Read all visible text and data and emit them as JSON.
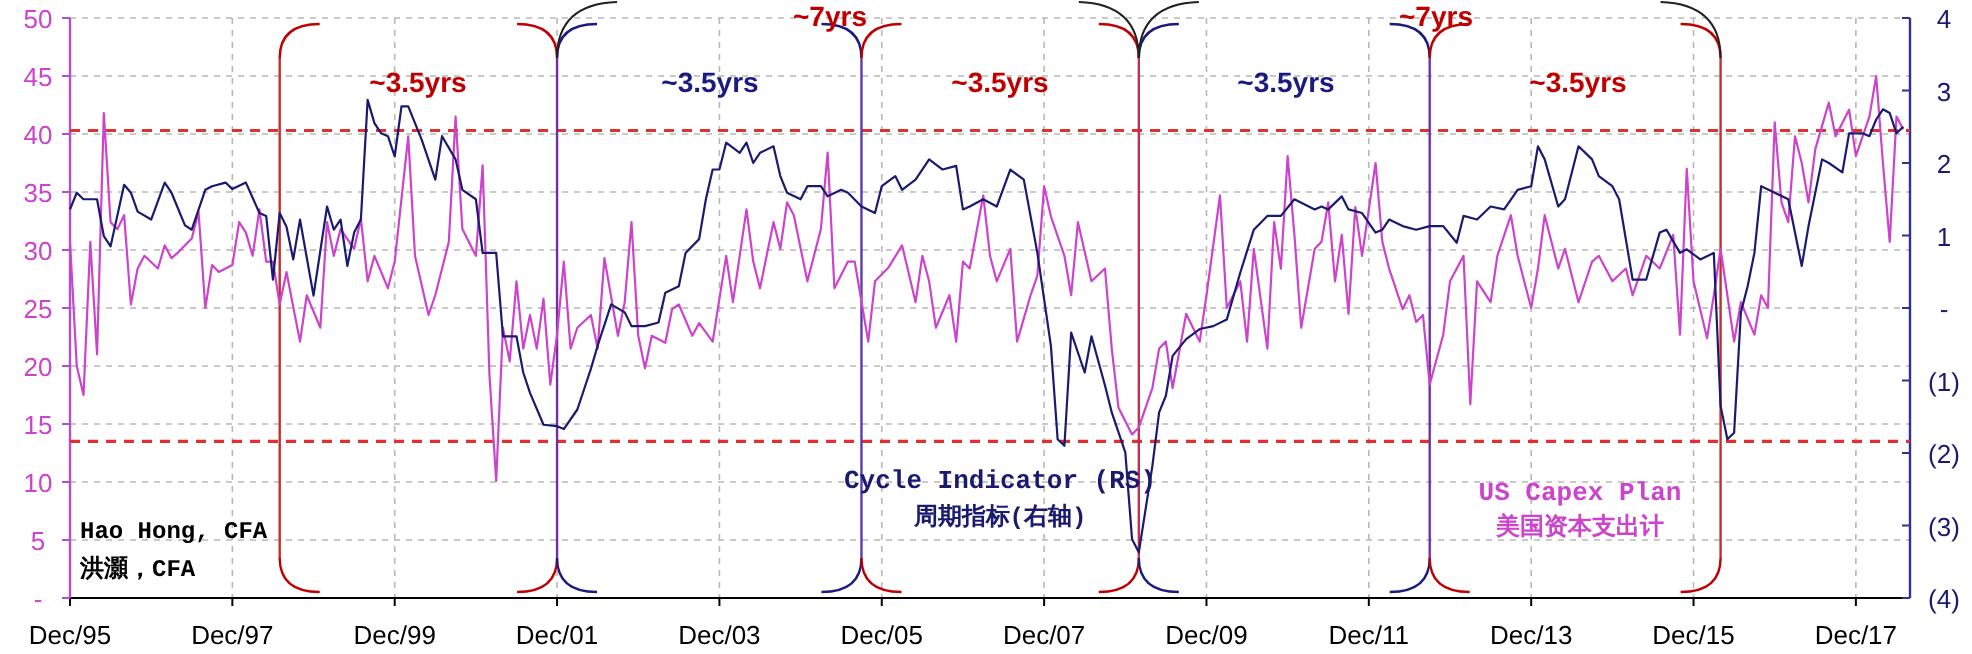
{
  "chart_data": {
    "type": "line",
    "grid": true,
    "xlim": [
      "1995-12",
      "2018-08"
    ],
    "xticks": [
      {
        "value": "1995-12",
        "label": "Dec/95"
      },
      {
        "value": "1997-12",
        "label": "Dec/97"
      },
      {
        "value": "1999-12",
        "label": "Dec/99"
      },
      {
        "value": "2001-12",
        "label": "Dec/01"
      },
      {
        "value": "2003-12",
        "label": "Dec/03"
      },
      {
        "value": "2005-12",
        "label": "Dec/05"
      },
      {
        "value": "2007-12",
        "label": "Dec/07"
      },
      {
        "value": "2009-12",
        "label": "Dec/09"
      },
      {
        "value": "2011-12",
        "label": "Dec/11"
      },
      {
        "value": "2013-12",
        "label": "Dec/13"
      },
      {
        "value": "2015-12",
        "label": "Dec/15"
      },
      {
        "value": "2017-12",
        "label": "Dec/17"
      }
    ],
    "ylim": [
      0,
      50
    ],
    "yticks": [
      {
        "value": 0,
        "label": "-"
      },
      5,
      10,
      15,
      20,
      25,
      30,
      35,
      40,
      45,
      50
    ],
    "y2lim": [
      -4,
      4
    ],
    "y2ticks": [
      {
        "value": -4,
        "label": "(4)"
      },
      {
        "value": -3,
        "label": "(3)"
      },
      {
        "value": -2,
        "label": "(2)"
      },
      {
        "value": -1,
        "label": "(1)"
      },
      {
        "value": 0,
        "label": "-"
      },
      1,
      2,
      3,
      4
    ],
    "ref_lines": [
      {
        "axis": "y",
        "value": 40.3,
        "color": "#e03030",
        "line_style": "dashed"
      },
      {
        "axis": "y",
        "value": 13.5,
        "color": "#e03030",
        "line_style": "dashed"
      },
      {
        "axis": "x",
        "value": "1998-07",
        "color": "#c03030",
        "line_style": "solid"
      },
      {
        "axis": "x",
        "value": "2001-12",
        "color": "#7030a0",
        "line_style": "solid"
      },
      {
        "axis": "x",
        "value": "2005-09",
        "color": "#5a3cb0",
        "line_style": "solid"
      },
      {
        "axis": "x",
        "value": "2009-02",
        "color": "#c03050",
        "line_style": "solid"
      },
      {
        "axis": "x",
        "value": "2012-09",
        "color": "#7030a0",
        "line_style": "solid"
      },
      {
        "axis": "x",
        "value": "2016-04",
        "color": "#c03030",
        "line_style": "solid"
      }
    ],
    "annotations": [
      "Hao Hong, CFA",
      "洪灝，CFA",
      "周期指标(右轴)",
      "美国资本支出计",
      "~3.5yrs",
      "~3.5yrs",
      "~3.5yrs",
      "~3.5yrs",
      "~3.5yrs",
      "~7yrs",
      "~7yrs"
    ],
    "series": [
      {
        "name": "US Capex Plan",
        "color": "#cc44cc",
        "x": [
          "1995-12",
          "1996-01",
          "1996-02",
          "1996-03",
          "1996-04",
          "1996-05",
          "1996-06",
          "1996-07",
          "1996-08",
          "1996-09",
          "1996-10",
          "1996-11",
          "1997-01",
          "1997-02",
          "1997-03",
          "1997-04",
          "1997-06",
          "1997-07",
          "1997-08",
          "1997-09",
          "1997-10",
          "1997-12",
          "1998-01",
          "1998-02",
          "1998-03",
          "1998-04",
          "1998-05",
          "1998-06",
          "1998-07",
          "1998-08",
          "1998-10",
          "1998-11",
          "1999-01",
          "1999-02",
          "1999-03",
          "1999-04",
          "1999-06",
          "1999-07",
          "1999-08",
          "1999-09",
          "1999-11",
          "1999-12",
          "2000-02",
          "2000-03",
          "2000-05",
          "2000-06",
          "2000-08",
          "2000-09",
          "2000-10",
          "2000-12",
          "2001-01",
          "2001-02",
          "2001-03",
          "2001-04",
          "2001-05",
          "2001-06",
          "2001-07",
          "2001-08",
          "2001-09",
          "2001-10",
          "2001-11",
          "2001-12",
          "2002-01",
          "2002-02",
          "2002-03",
          "2002-05",
          "2002-06",
          "2002-07",
          "2002-09",
          "2002-10",
          "2002-11",
          "2002-12",
          "2003-01",
          "2003-02",
          "2003-04",
          "2003-05",
          "2003-06",
          "2003-08",
          "2003-09",
          "2003-11",
          "2004-01",
          "2004-02",
          "2004-04",
          "2004-05",
          "2004-06",
          "2004-08",
          "2004-09",
          "2004-10",
          "2004-11",
          "2005-01",
          "2005-03",
          "2005-04",
          "2005-05",
          "2005-07",
          "2005-08",
          "2005-10",
          "2005-11",
          "2006-01",
          "2006-03",
          "2006-05",
          "2006-06",
          "2006-07",
          "2006-08",
          "2006-10",
          "2006-11",
          "2006-12",
          "2007-01",
          "2007-03",
          "2007-04",
          "2007-05",
          "2007-07",
          "2007-08",
          "2007-10",
          "2007-11",
          "2007-12",
          "2008-01",
          "2008-03",
          "2008-04",
          "2008-05",
          "2008-07",
          "2008-09",
          "2008-10",
          "2008-11",
          "2009-01",
          "2009-02",
          "2009-04",
          "2009-05",
          "2009-06",
          "2009-07",
          "2009-09",
          "2009-11",
          "2009-12",
          "2010-02",
          "2010-03",
          "2010-05",
          "2010-06",
          "2010-07",
          "2010-09",
          "2010-10",
          "2010-11",
          "2010-12",
          "2011-01",
          "2011-02",
          "2011-04",
          "2011-05",
          "2011-06",
          "2011-07",
          "2011-08",
          "2011-09",
          "2011-10",
          "2011-11",
          "2012-01",
          "2012-02",
          "2012-03",
          "2012-05",
          "2012-06",
          "2012-07",
          "2012-08",
          "2012-09",
          "2012-11",
          "2012-12",
          "2013-02",
          "2013-03",
          "2013-04",
          "2013-06",
          "2013-07",
          "2013-09",
          "2013-10",
          "2013-12",
          "2014-01",
          "2014-02",
          "2014-04",
          "2014-05",
          "2014-07",
          "2014-09",
          "2014-10",
          "2014-12",
          "2015-02",
          "2015-03",
          "2015-05",
          "2015-07",
          "2015-09",
          "2015-10",
          "2015-11",
          "2015-12",
          "2016-02",
          "2016-03",
          "2016-04",
          "2016-06",
          "2016-07",
          "2016-09",
          "2016-10",
          "2016-11",
          "2016-12",
          "2017-01",
          "2017-02",
          "2017-03",
          "2017-04",
          "2017-05",
          "2017-06",
          "2017-08",
          "2017-09",
          "2017-11",
          "2017-12",
          "2018-02",
          "2018-03",
          "2018-04",
          "2018-05",
          "2018-06",
          "2018-07"
        ],
        "values": [
          30.7,
          20.0,
          17.5,
          30.7,
          21.0,
          41.8,
          32.4,
          31.8,
          33.0,
          25.3,
          28.4,
          29.5,
          28.4,
          30.4,
          29.3,
          29.8,
          31.0,
          33.3,
          25.0,
          28.7,
          28.1,
          28.7,
          32.4,
          31.5,
          29.5,
          33.5,
          29.0,
          29.0,
          25.3,
          28.1,
          22.1,
          26.1,
          23.3,
          32.4,
          29.5,
          31.8,
          30.1,
          32.7,
          27.3,
          29.5,
          26.7,
          29.0,
          39.8,
          29.5,
          24.4,
          26.1,
          30.7,
          41.5,
          31.8,
          29.5,
          37.3,
          19.3,
          10.1,
          23.3,
          20.4,
          27.3,
          21.5,
          24.4,
          21.5,
          25.8,
          18.4,
          22.7,
          29.0,
          21.5,
          23.3,
          24.4,
          21.5,
          29.3,
          22.6,
          25.5,
          32.4,
          22.6,
          19.8,
          22.6,
          22.0,
          24.9,
          25.3,
          22.6,
          23.7,
          22.1,
          29.5,
          25.5,
          33.5,
          29.0,
          26.7,
          32.4,
          30.1,
          34.1,
          33.0,
          27.3,
          31.8,
          38.4,
          26.7,
          29.0,
          29.0,
          22.1,
          27.3,
          28.5,
          30.4,
          25.5,
          29.5,
          27.3,
          23.3,
          26.1,
          22.1,
          29.0,
          28.4,
          34.7,
          29.5,
          27.3,
          30.1,
          22.1,
          26.1,
          27.8,
          35.5,
          32.9,
          29.5,
          26.1,
          32.4,
          27.3,
          28.4,
          21.5,
          16.4,
          14.1,
          14.7,
          18.1,
          21.5,
          22.1,
          18.1,
          24.5,
          22.1,
          26.1,
          34.7,
          25.0,
          27.3,
          22.1,
          30.1,
          21.5,
          32.4,
          28.4,
          38.1,
          31.3,
          23.3,
          30.1,
          30.7,
          34.1,
          27.3,
          31.3,
          24.5,
          33.7,
          29.5,
          37.5,
          30.7,
          28.4,
          24.9,
          26.1,
          23.8,
          24.4,
          18.4,
          22.7,
          27.3,
          29.5,
          16.7,
          27.3,
          25.5,
          29.5,
          33.0,
          29.5,
          25.0,
          28.4,
          33.0,
          28.4,
          30.1,
          25.5,
          29.0,
          29.5,
          27.3,
          28.4,
          26.1,
          29.5,
          28.4,
          31.3,
          22.7,
          37.0,
          27.3,
          22.4,
          26.1,
          30.1,
          22.1,
          25.5,
          22.7,
          26.1,
          25.0,
          41.0,
          34.1,
          32.4,
          39.8,
          37.5,
          34.1,
          38.7,
          42.7,
          39.8,
          42.1,
          38.1,
          41.5,
          45.0,
          37.5,
          30.7,
          41.5,
          40.4
        ]
      },
      {
        "name": "Cycle Indicator (RS)",
        "color": "#1a1a70",
        "axis": "y2",
        "x": [
          "1995-12",
          "1996-01",
          "1996-02",
          "1996-04",
          "1996-05",
          "1996-06",
          "1996-08",
          "1996-09",
          "1996-10",
          "1996-12",
          "1997-02",
          "1997-03",
          "1997-05",
          "1997-06",
          "1997-08",
          "1997-09",
          "1997-11",
          "1997-12",
          "1998-02",
          "1998-04",
          "1998-05",
          "1998-06",
          "1998-07",
          "1998-08",
          "1998-09",
          "1998-10",
          "1998-12",
          "1999-02",
          "1999-03",
          "1999-04",
          "1999-05",
          "1999-06",
          "1999-07",
          "1999-08",
          "1999-09",
          "1999-10",
          "1999-11",
          "1999-12",
          "2000-01",
          "2000-02",
          "2000-04",
          "2000-06",
          "2000-07",
          "2000-09",
          "2000-10",
          "2000-12",
          "2001-01",
          "2001-03",
          "2001-04",
          "2001-06",
          "2001-07",
          "2001-08",
          "2001-10",
          "2001-12",
          "2002-01",
          "2002-03",
          "2002-05",
          "2002-06",
          "2002-08",
          "2002-10",
          "2002-11",
          "2003-01",
          "2003-03",
          "2003-04",
          "2003-06",
          "2003-07",
          "2003-09",
          "2003-10",
          "2003-11",
          "2003-12",
          "2004-01",
          "2004-03",
          "2004-04",
          "2004-05",
          "2004-06",
          "2004-08",
          "2004-09",
          "2004-10",
          "2004-12",
          "2005-01",
          "2005-03",
          "2005-04",
          "2005-06",
          "2005-07",
          "2005-09",
          "2005-11",
          "2005-12",
          "2006-02",
          "2006-03",
          "2006-05",
          "2006-07",
          "2006-09",
          "2006-11",
          "2006-12",
          "2007-01",
          "2007-03",
          "2007-05",
          "2007-07",
          "2007-09",
          "2007-11",
          "2008-01",
          "2008-02",
          "2008-03",
          "2008-04",
          "2008-06",
          "2008-07",
          "2008-09",
          "2008-10",
          "2008-12",
          "2009-01",
          "2009-02",
          "2009-04",
          "2009-05",
          "2009-06",
          "2009-07",
          "2009-09",
          "2009-11",
          "2010-01",
          "2010-03",
          "2010-05",
          "2010-07",
          "2010-09",
          "2010-11",
          "2011-01",
          "2011-04",
          "2011-05",
          "2011-06",
          "2011-08",
          "2011-09",
          "2011-11",
          "2012-01",
          "2012-02",
          "2012-03",
          "2012-05",
          "2012-07",
          "2012-09",
          "2012-11",
          "2013-01",
          "2013-02",
          "2013-04",
          "2013-06",
          "2013-08",
          "2013-10",
          "2013-12",
          "2014-01",
          "2014-02",
          "2014-04",
          "2014-05",
          "2014-07",
          "2014-09",
          "2014-10",
          "2014-12",
          "2015-01",
          "2015-03",
          "2015-05",
          "2015-07",
          "2015-08",
          "2015-10",
          "2015-11",
          "2016-01",
          "2016-03",
          "2016-04",
          "2016-05",
          "2016-06",
          "2016-07",
          "2016-08",
          "2016-09",
          "2016-10",
          "2016-12",
          "2017-02",
          "2017-04",
          "2017-05",
          "2017-07",
          "2017-08",
          "2017-10",
          "2017-11",
          "2018-01",
          "2018-02",
          "2018-03",
          "2018-04",
          "2018-05",
          "2018-06",
          "2018-07"
        ],
        "values": [
          1.36,
          1.59,
          1.5,
          1.5,
          0.99,
          0.85,
          1.7,
          1.59,
          1.33,
          1.22,
          1.73,
          1.59,
          1.14,
          1.08,
          1.63,
          1.68,
          1.73,
          1.64,
          1.73,
          1.31,
          1.27,
          0.39,
          1.31,
          1.12,
          0.67,
          1.22,
          0.17,
          1.4,
          1.08,
          1.22,
          0.58,
          1.04,
          1.22,
          2.87,
          2.55,
          2.41,
          2.37,
          2.09,
          2.78,
          2.78,
          2.32,
          1.77,
          2.37,
          2.05,
          1.63,
          1.5,
          0.76,
          0.76,
          -0.39,
          -0.39,
          -0.89,
          -1.17,
          -1.61,
          -1.63,
          -1.67,
          -1.4,
          -0.84,
          -0.52,
          0.05,
          -0.06,
          -0.25,
          -0.25,
          -0.2,
          0.21,
          0.3,
          0.76,
          0.95,
          1.5,
          1.91,
          1.91,
          2.28,
          2.14,
          2.28,
          2.0,
          2.14,
          2.23,
          1.82,
          1.59,
          1.5,
          1.68,
          1.68,
          1.54,
          1.63,
          1.59,
          1.4,
          1.31,
          1.68,
          1.82,
          1.63,
          1.77,
          2.05,
          1.91,
          1.96,
          1.36,
          1.4,
          1.5,
          1.4,
          1.91,
          1.77,
          0.76,
          -0.52,
          -1.81,
          -1.9,
          -0.34,
          -0.89,
          -0.39,
          -1.07,
          -1.44,
          -1.99,
          -3.19,
          -3.37,
          -2.18,
          -1.44,
          -1.21,
          -0.66,
          -0.43,
          -0.29,
          -0.25,
          -0.16,
          0.49,
          1.08,
          1.27,
          1.27,
          1.5,
          1.36,
          1.4,
          1.36,
          1.54,
          1.36,
          1.31,
          1.04,
          1.08,
          1.22,
          1.13,
          1.08,
          1.13,
          1.13,
          0.9,
          1.27,
          1.22,
          1.4,
          1.36,
          1.63,
          1.68,
          2.23,
          2.05,
          1.4,
          1.5,
          2.23,
          2.05,
          1.82,
          1.68,
          1.5,
          0.39,
          0.39,
          1.04,
          1.08,
          0.76,
          0.81,
          0.67,
          0.76,
          -1.35,
          -1.81,
          -1.72,
          -0.06,
          0.3,
          0.76,
          1.68,
          1.59,
          1.5,
          0.58,
          1.13,
          2.05,
          2.0,
          1.87,
          2.41,
          2.41,
          2.37,
          2.6,
          2.74,
          2.69,
          2.41,
          2.5
        ]
      }
    ]
  }
}
